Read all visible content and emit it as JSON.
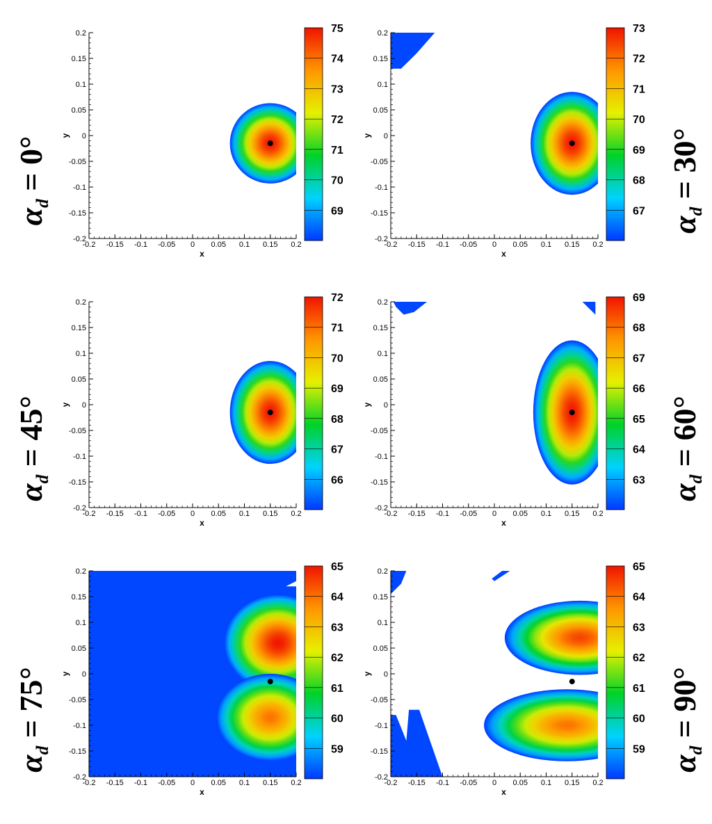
{
  "figure": {
    "panels": [
      {
        "alpha_label": "α",
        "alpha_sub": "d",
        "alpha_rest": " = 0°",
        "chart_data": {
          "type": "heatmap",
          "title": "",
          "xlabel": "x",
          "ylabel": "y",
          "xlim": [
            -0.2,
            0.2
          ],
          "ylim": [
            -0.2,
            0.2
          ],
          "x_ticks": [
            "-0.2",
            "-0.15",
            "-0.1",
            "-0.05",
            "0",
            "0.05",
            "0.1",
            "0.15",
            "0.2"
          ],
          "y_ticks": [
            "0.2",
            "0.15",
            "0.1",
            "0.05",
            "0",
            "-0.05",
            "-0.1",
            "-0.15",
            "-0.2"
          ],
          "colorbar_range": [
            68.0,
            75.0
          ],
          "colorbar_ticks": [
            "75",
            "74",
            "73",
            "72",
            "71",
            "70",
            "69"
          ],
          "marker": {
            "x": 0.15,
            "y": -0.015
          },
          "blobs": [
            {
              "cx": 0.15,
              "cy": -0.015,
              "rx": 0.078,
              "ry": 0.078,
              "peak": 75.0,
              "min": 68.0
            }
          ],
          "background_regions": []
        }
      },
      {
        "alpha_label": "α",
        "alpha_sub": "d",
        "alpha_rest": " = 30°",
        "chart_data": {
          "type": "heatmap",
          "title": "",
          "xlabel": "x",
          "ylabel": "y",
          "xlim": [
            -0.2,
            0.2
          ],
          "ylim": [
            -0.2,
            0.2
          ],
          "x_ticks": [
            "-0.2",
            "-0.15",
            "-0.1",
            "-0.05",
            "0",
            "0.05",
            "0.1",
            "0.15",
            "0.2"
          ],
          "y_ticks": [
            "0.2",
            "0.15",
            "0.1",
            "0.05",
            "0",
            "-0.05",
            "-0.1",
            "-0.15",
            "-0.2"
          ],
          "colorbar_range": [
            66.0,
            73.0
          ],
          "colorbar_ticks": [
            "73",
            "72",
            "71",
            "70",
            "69",
            "68",
            "67"
          ],
          "marker": {
            "x": 0.15,
            "y": -0.015
          },
          "blobs": [
            {
              "cx": 0.15,
              "cy": -0.015,
              "rx": 0.08,
              "ry": 0.1,
              "peak": 73.0,
              "min": 66.0
            }
          ],
          "background_regions": [
            {
              "points": [
                [
                  -0.2,
                  0.2
                ],
                [
                  -0.115,
                  0.2
                ],
                [
                  -0.15,
                  0.16
                ],
                [
                  -0.18,
                  0.13
                ],
                [
                  -0.2,
                  0.13
                ]
              ]
            }
          ]
        }
      },
      {
        "alpha_label": "α",
        "alpha_sub": "d",
        "alpha_rest": " = 45°",
        "chart_data": {
          "type": "heatmap",
          "title": "",
          "xlabel": "x",
          "ylabel": "y",
          "xlim": [
            -0.2,
            0.2
          ],
          "ylim": [
            -0.2,
            0.2
          ],
          "x_ticks": [
            "-0.2",
            "-0.15",
            "-0.1",
            "-0.05",
            "0",
            "0.05",
            "0.1",
            "0.15",
            "0.2"
          ],
          "y_ticks": [
            "0.2",
            "0.15",
            "0.1",
            "0.05",
            "0",
            "-0.05",
            "-0.1",
            "-0.15",
            "-0.2"
          ],
          "colorbar_range": [
            65.0,
            72.0
          ],
          "colorbar_ticks": [
            "72",
            "71",
            "70",
            "69",
            "68",
            "67",
            "66"
          ],
          "marker": {
            "x": 0.15,
            "y": -0.015
          },
          "blobs": [
            {
              "cx": 0.15,
              "cy": -0.015,
              "rx": 0.078,
              "ry": 0.1,
              "peak": 72.0,
              "min": 65.0
            }
          ],
          "background_regions": []
        }
      },
      {
        "alpha_label": "α",
        "alpha_sub": "d",
        "alpha_rest": " = 60°",
        "chart_data": {
          "type": "heatmap",
          "title": "",
          "xlabel": "x",
          "ylabel": "y",
          "xlim": [
            -0.2,
            0.2
          ],
          "ylim": [
            -0.2,
            0.2
          ],
          "x_ticks": [
            "-0.2",
            "-0.15",
            "-0.1",
            "-0.05",
            "0",
            "0.05",
            "0.1",
            "0.15",
            "0.2"
          ],
          "y_ticks": [
            "0.2",
            "0.15",
            "0.1",
            "0.05",
            "0",
            "-0.05",
            "-0.1",
            "-0.15",
            "-0.2"
          ],
          "colorbar_range": [
            62.0,
            69.0
          ],
          "colorbar_ticks": [
            "69",
            "68",
            "67",
            "66",
            "65",
            "64",
            "63"
          ],
          "marker": {
            "x": 0.15,
            "y": -0.015
          },
          "blobs": [
            {
              "cx": 0.15,
              "cy": -0.015,
              "rx": 0.075,
              "ry": 0.14,
              "peak": 69.0,
              "min": 62.0
            }
          ],
          "background_regions": [
            {
              "points": [
                [
                  -0.195,
                  0.2
                ],
                [
                  -0.13,
                  0.2
                ],
                [
                  -0.155,
                  0.18
                ],
                [
                  -0.175,
                  0.175
                ],
                [
                  -0.19,
                  0.19
                ]
              ]
            },
            {
              "points": [
                [
                  0.17,
                  0.2
                ],
                [
                  0.195,
                  0.2
                ],
                [
                  0.195,
                  0.175
                ],
                [
                  0.185,
                  0.185
                ]
              ]
            }
          ]
        }
      },
      {
        "alpha_label": "α",
        "alpha_sub": "d",
        "alpha_rest": " = 75°",
        "chart_data": {
          "type": "heatmap",
          "title": "",
          "xlabel": "x",
          "ylabel": "y",
          "xlim": [
            -0.2,
            0.2
          ],
          "ylim": [
            -0.2,
            0.2
          ],
          "x_ticks": [
            "-0.2",
            "-0.15",
            "-0.1",
            "-0.05",
            "0",
            "0.05",
            "0.1",
            "0.15",
            "0.2"
          ],
          "y_ticks": [
            "0.2",
            "0.15",
            "0.1",
            "0.05",
            "0",
            "-0.05",
            "-0.1",
            "-0.15",
            "-0.2"
          ],
          "colorbar_range": [
            58.0,
            65.0
          ],
          "colorbar_ticks": [
            "65",
            "64",
            "63",
            "62",
            "61",
            "60",
            "59"
          ],
          "marker": {
            "x": 0.15,
            "y": -0.015
          },
          "blobs": [
            {
              "cx": 0.165,
              "cy": 0.06,
              "rx": 0.105,
              "ry": 0.095,
              "peak": 65.0,
              "min": 58.0
            },
            {
              "cx": 0.15,
              "cy": -0.085,
              "rx": 0.105,
              "ry": 0.085,
              "peak": 64.0,
              "min": 58.0
            }
          ],
          "background_regions": [
            {
              "points": [
                [
                  -0.2,
                  0.2
                ],
                [
                  0.2,
                  0.2
                ],
                [
                  0.2,
                  0.18
                ],
                [
                  0.18,
                  0.17
                ],
                [
                  0.14,
                  0.17
                ],
                [
                  0.1,
                  0.155
                ],
                [
                  0.07,
                  0.13
                ],
                [
                  0.04,
                  0.09
                ],
                [
                  0.03,
                  0.03
                ],
                [
                  0.045,
                  -0.03
                ],
                [
                  0.04,
                  -0.07
                ],
                [
                  0.02,
                  -0.09
                ],
                [
                  0.02,
                  -0.13
                ],
                [
                  0.06,
                  -0.17
                ],
                [
                  0.08,
                  -0.2
                ],
                [
                  -0.075,
                  -0.2
                ],
                [
                  -0.09,
                  -0.16
                ],
                [
                  -0.1,
                  -0.1
                ],
                [
                  -0.105,
                  -0.02
                ],
                [
                  -0.1,
                  0.05
                ],
                [
                  -0.095,
                  0.09
                ],
                [
                  -0.08,
                  0.12
                ],
                [
                  -0.07,
                  0.14
                ],
                [
                  -0.055,
                  0.09
                ],
                [
                  -0.05,
                  0.0
                ],
                [
                  -0.045,
                  -0.065
                ],
                [
                  -0.035,
                  0.0
                ],
                [
                  -0.04,
                  0.08
                ],
                [
                  -0.02,
                  0.14
                ],
                [
                  0.03,
                  0.17
                ],
                [
                  0.1,
                  0.18
                ],
                [
                  0.12,
                  0.18
                ],
                [
                  0.17,
                  0.175
                ],
                [
                  0.175,
                  0.17
                ],
                [
                  0.2,
                  0.17
                ],
                [
                  0.2,
                  -0.2
                ],
                [
                  -0.2,
                  -0.2
                ]
              ]
            }
          ]
        }
      },
      {
        "alpha_label": "α",
        "alpha_sub": "d",
        "alpha_rest": " = 90°",
        "chart_data": {
          "type": "heatmap",
          "title": "",
          "xlabel": "x",
          "ylabel": "y",
          "xlim": [
            -0.2,
            0.2
          ],
          "ylim": [
            -0.2,
            0.2
          ],
          "x_ticks": [
            "-0.2",
            "-0.15",
            "-0.1",
            "-0.05",
            "0",
            "0.05",
            "0.1",
            "0.15",
            "0.2"
          ],
          "y_ticks": [
            "0.2",
            "0.15",
            "0.1",
            "0.05",
            "0",
            "-0.05",
            "-0.1",
            "-0.15",
            "-0.2"
          ],
          "colorbar_range": [
            58.0,
            65.0
          ],
          "colorbar_ticks": [
            "65",
            "64",
            "63",
            "62",
            "61",
            "60",
            "59"
          ],
          "marker": {
            "x": 0.15,
            "y": -0.015
          },
          "blobs": [
            {
              "cx": 0.165,
              "cy": 0.07,
              "rx": 0.145,
              "ry": 0.072,
              "peak": 64.5,
              "min": 58.0
            },
            {
              "cx": 0.14,
              "cy": -0.1,
              "rx": 0.16,
              "ry": 0.07,
              "peak": 64.0,
              "min": 58.0
            }
          ],
          "background_regions": [
            {
              "points": [
                [
                  -0.2,
                  0.2
                ],
                [
                  -0.17,
                  0.2
                ],
                [
                  -0.18,
                  0.175
                ],
                [
                  -0.2,
                  0.155
                ]
              ]
            },
            {
              "points": [
                [
                  0.0,
                  0.18
                ],
                [
                  0.03,
                  0.2
                ],
                [
                  0.015,
                  0.2
                ],
                [
                  -0.005,
                  0.185
                ]
              ]
            },
            {
              "points": [
                [
                  -0.2,
                  -0.08
                ],
                [
                  -0.19,
                  -0.08
                ],
                [
                  -0.17,
                  -0.13
                ],
                [
                  -0.165,
                  -0.07
                ],
                [
                  -0.145,
                  -0.07
                ],
                [
                  -0.1,
                  -0.2
                ],
                [
                  -0.2,
                  -0.2
                ]
              ]
            }
          ]
        }
      }
    ]
  }
}
